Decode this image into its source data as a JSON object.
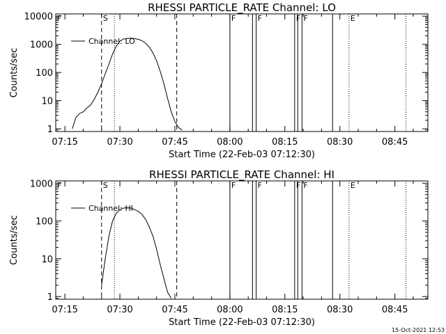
{
  "footer_timestamp": "15-Oct-2021 12:53",
  "chart_data": [
    {
      "type": "line",
      "title": "RHESSI PARTICLE_RATE Channel: LO",
      "xlabel": "Start Time (22-Feb-03 07:12:30)",
      "ylabel": "Counts/sec",
      "y_scale": "log",
      "ylim": [
        0.8,
        12000
      ],
      "xlim": [
        "07:12:30",
        "08:54:00"
      ],
      "x_ticks": [
        "07:15",
        "07:30",
        "07:45",
        "08:00",
        "08:15",
        "08:30",
        "08:45"
      ],
      "y_ticks": [
        "1",
        "10",
        "100",
        "1000",
        "10000"
      ],
      "legend_position": "top-left",
      "series": [
        {
          "name": "Channel: LO",
          "x": [
            "07:17:00",
            "07:18:00",
            "07:19:00",
            "07:20:00",
            "07:21:00",
            "07:22:00",
            "07:23:00",
            "07:24:00",
            "07:25:00",
            "07:26:00",
            "07:27:00",
            "07:28:00",
            "07:29:00",
            "07:30:00",
            "07:31:00",
            "07:32:00",
            "07:33:00",
            "07:34:00",
            "07:35:00",
            "07:36:00",
            "07:37:00",
            "07:38:00",
            "07:39:00",
            "07:40:00",
            "07:41:00",
            "07:42:00",
            "07:43:00",
            "07:44:00",
            "07:45:00",
            "07:46:00",
            "07:47:00"
          ],
          "y": [
            1,
            2.5,
            3.5,
            4,
            5.5,
            7,
            11,
            20,
            40,
            90,
            200,
            450,
            850,
            1300,
            1550,
            1600,
            1650,
            1600,
            1500,
            1350,
            1100,
            800,
            500,
            260,
            110,
            40,
            12,
            4,
            1.8,
            1.1,
            0.9
          ]
        }
      ],
      "markers": [
        {
          "label": "F",
          "time": "07:12:30",
          "style": "solid"
        },
        {
          "label": "S",
          "time": "07:25:00",
          "style": "dashed"
        },
        {
          "label": "",
          "time": "07:28:30",
          "style": "dotted"
        },
        {
          "label": "",
          "time": "07:45:30",
          "style": "dashed"
        },
        {
          "label": "F",
          "time": "08:00:00",
          "style": "solid"
        },
        {
          "label": "",
          "time": "08:06:10",
          "style": "solid"
        },
        {
          "label": "F",
          "time": "08:07:10",
          "style": "solid"
        },
        {
          "label": "F",
          "time": "08:17:40",
          "style": "solid"
        },
        {
          "label": "",
          "time": "08:18:30",
          "style": "solid"
        },
        {
          "label": "F",
          "time": "08:19:40",
          "style": "solid"
        },
        {
          "label": "",
          "time": "08:28:00",
          "style": "solid"
        },
        {
          "label": "E",
          "time": "08:32:30",
          "style": "dotted"
        },
        {
          "label": "",
          "time": "08:48:00",
          "style": "dotted"
        }
      ]
    },
    {
      "type": "line",
      "title": "RHESSI PARTICLE_RATE Channel: HI",
      "xlabel": "Start Time (22-Feb-03 07:12:30)",
      "ylabel": "Counts/sec",
      "y_scale": "log",
      "ylim": [
        0.85,
        1150
      ],
      "xlim": [
        "07:12:30",
        "08:54:00"
      ],
      "x_ticks": [
        "07:15",
        "07:30",
        "07:45",
        "08:00",
        "08:15",
        "08:30",
        "08:45"
      ],
      "y_ticks": [
        "1",
        "10",
        "100",
        "1000"
      ],
      "legend_position": "top-left",
      "series": [
        {
          "name": "Channel: HI",
          "x": [
            "07:25:00",
            "07:26:00",
            "07:27:00",
            "07:28:00",
            "07:29:00",
            "07:30:00",
            "07:31:00",
            "07:32:00",
            "07:33:00",
            "07:34:00",
            "07:35:00",
            "07:36:00",
            "07:37:00",
            "07:38:00",
            "07:39:00",
            "07:40:00",
            "07:41:00",
            "07:42:00",
            "07:43:00",
            "07:44:00"
          ],
          "y": [
            2,
            10,
            40,
            100,
            160,
            200,
            220,
            225,
            220,
            200,
            180,
            150,
            110,
            70,
            40,
            18,
            7,
            3,
            1.3,
            0.9
          ]
        }
      ],
      "markers": [
        {
          "label": "F",
          "time": "07:12:30",
          "style": "solid"
        },
        {
          "label": "S",
          "time": "07:25:00",
          "style": "dashed"
        },
        {
          "label": "",
          "time": "07:28:30",
          "style": "dotted"
        },
        {
          "label": "",
          "time": "07:45:30",
          "style": "dashed"
        },
        {
          "label": "F",
          "time": "08:00:00",
          "style": "solid"
        },
        {
          "label": "",
          "time": "08:06:10",
          "style": "solid"
        },
        {
          "label": "F",
          "time": "08:07:10",
          "style": "solid"
        },
        {
          "label": "F",
          "time": "08:17:40",
          "style": "solid"
        },
        {
          "label": "",
          "time": "08:18:30",
          "style": "solid"
        },
        {
          "label": "F",
          "time": "08:19:40",
          "style": "solid"
        },
        {
          "label": "",
          "time": "08:28:00",
          "style": "solid"
        },
        {
          "label": "E",
          "time": "08:32:30",
          "style": "dotted"
        },
        {
          "label": "",
          "time": "08:48:00",
          "style": "dotted"
        }
      ]
    }
  ]
}
